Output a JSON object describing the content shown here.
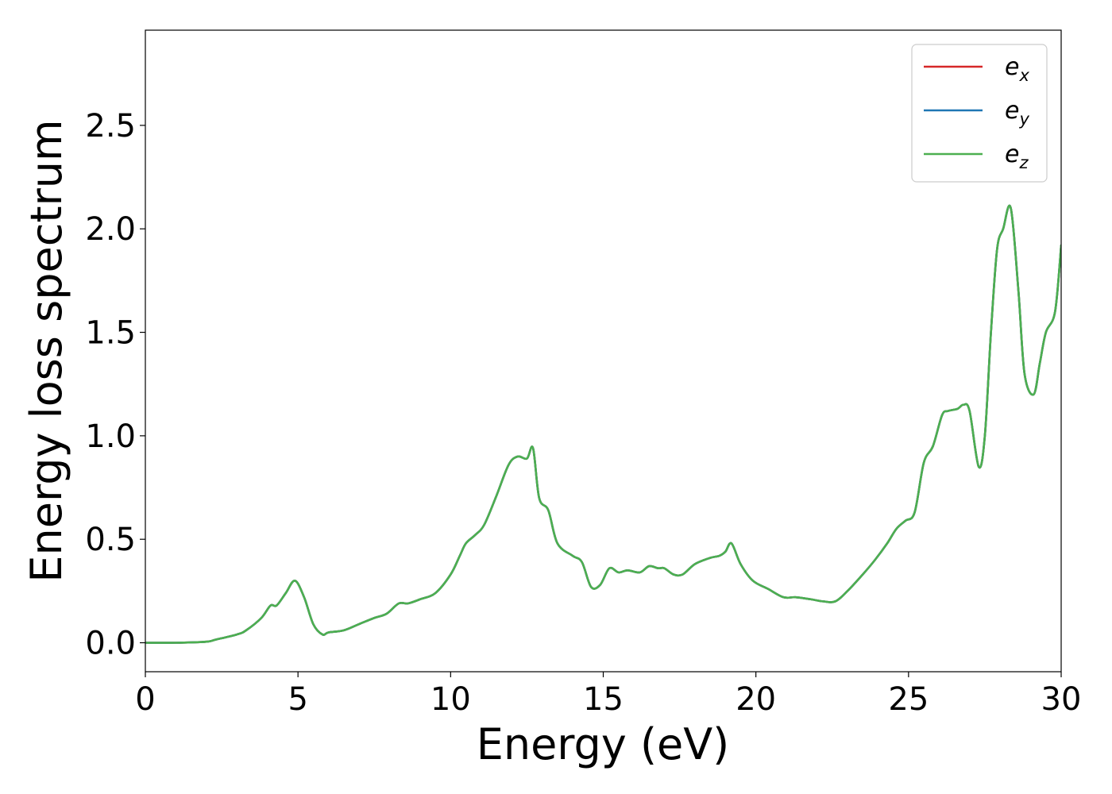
{
  "chart_data": {
    "type": "line",
    "xlabel": "Energy (eV)",
    "ylabel": "Energy loss spectrum",
    "xlim": [
      0,
      30
    ],
    "ylim": [
      -0.14,
      2.96
    ],
    "xticks": [
      0,
      5,
      10,
      15,
      20,
      25,
      30
    ],
    "xtick_labels": [
      "0",
      "5",
      "10",
      "15",
      "20",
      "25",
      "30"
    ],
    "yticks": [
      0.0,
      0.5,
      1.0,
      1.5,
      2.0,
      2.5
    ],
    "ytick_labels": [
      "0.0",
      "0.5",
      "1.0",
      "1.5",
      "2.0",
      "2.5"
    ],
    "grid": false,
    "legend_position": "top-right",
    "colors": {
      "e_x": "#d62728",
      "e_y": "#1f77b4",
      "e_z": "#4caf50"
    },
    "legend": [
      {
        "base": "e",
        "sub": "x",
        "color": "#d62728"
      },
      {
        "base": "e",
        "sub": "y",
        "color": "#1f77b4"
      },
      {
        "base": "e",
        "sub": "z",
        "color": "#4caf50"
      }
    ],
    "x": [
      0.0,
      1.0,
      2.0,
      2.3,
      3.0,
      3.3,
      3.8,
      4.1,
      4.3,
      4.6,
      4.9,
      5.2,
      5.5,
      5.8,
      6.0,
      6.5,
      7.0,
      7.5,
      7.9,
      8.3,
      8.6,
      9.0,
      9.5,
      10.0,
      10.3,
      10.5,
      10.8,
      11.1,
      11.5,
      11.9,
      12.2,
      12.5,
      12.7,
      12.9,
      13.2,
      13.5,
      14.0,
      14.3,
      14.6,
      14.9,
      15.2,
      15.5,
      15.8,
      16.2,
      16.5,
      16.8,
      17.0,
      17.3,
      17.6,
      18.0,
      18.5,
      18.8,
      19.0,
      19.2,
      19.5,
      19.9,
      20.4,
      20.9,
      21.3,
      21.8,
      22.2,
      22.6,
      23.0,
      23.5,
      23.9,
      24.3,
      24.6,
      24.9,
      25.2,
      25.5,
      25.8,
      26.1,
      26.3,
      26.6,
      26.8,
      27.0,
      27.3,
      27.5,
      27.7,
      27.9,
      28.1,
      28.35,
      28.6,
      28.8,
      29.1,
      29.3,
      29.5,
      29.8,
      30.0
    ],
    "series": [
      {
        "name": "e_x",
        "color": "#d62728",
        "values": [
          0.0,
          0.0,
          0.005,
          0.015,
          0.04,
          0.06,
          0.12,
          0.18,
          0.18,
          0.24,
          0.3,
          0.22,
          0.09,
          0.04,
          0.05,
          0.06,
          0.09,
          0.12,
          0.14,
          0.19,
          0.19,
          0.21,
          0.24,
          0.33,
          0.42,
          0.48,
          0.52,
          0.57,
          0.71,
          0.86,
          0.9,
          0.89,
          0.94,
          0.7,
          0.64,
          0.48,
          0.42,
          0.39,
          0.27,
          0.28,
          0.36,
          0.34,
          0.35,
          0.34,
          0.37,
          0.36,
          0.36,
          0.33,
          0.33,
          0.38,
          0.41,
          0.42,
          0.44,
          0.48,
          0.38,
          0.3,
          0.26,
          0.22,
          0.22,
          0.21,
          0.2,
          0.2,
          0.25,
          0.33,
          0.4,
          0.48,
          0.55,
          0.59,
          0.63,
          0.87,
          0.95,
          1.1,
          1.12,
          1.13,
          1.15,
          1.12,
          0.85,
          1.0,
          1.5,
          1.9,
          2.0,
          2.1,
          1.7,
          1.3,
          1.2,
          1.35,
          1.5,
          1.6,
          1.92
        ]
      },
      {
        "name": "e_y",
        "color": "#1f77b4",
        "values": [
          0.0,
          0.0,
          0.005,
          0.015,
          0.04,
          0.06,
          0.12,
          0.18,
          0.18,
          0.24,
          0.3,
          0.22,
          0.09,
          0.04,
          0.05,
          0.06,
          0.09,
          0.12,
          0.14,
          0.19,
          0.19,
          0.21,
          0.24,
          0.33,
          0.42,
          0.48,
          0.52,
          0.57,
          0.71,
          0.86,
          0.9,
          0.89,
          0.94,
          0.7,
          0.64,
          0.48,
          0.42,
          0.39,
          0.27,
          0.28,
          0.36,
          0.34,
          0.35,
          0.34,
          0.37,
          0.36,
          0.36,
          0.33,
          0.33,
          0.38,
          0.41,
          0.42,
          0.44,
          0.48,
          0.38,
          0.3,
          0.26,
          0.22,
          0.22,
          0.21,
          0.2,
          0.2,
          0.25,
          0.33,
          0.4,
          0.48,
          0.55,
          0.59,
          0.63,
          0.87,
          0.95,
          1.1,
          1.12,
          1.13,
          1.15,
          1.12,
          0.85,
          1.0,
          1.5,
          1.9,
          2.0,
          2.1,
          1.7,
          1.3,
          1.2,
          1.35,
          1.5,
          1.6,
          1.92
        ]
      },
      {
        "name": "e_z",
        "color": "#4caf50",
        "values": [
          0.0,
          0.0,
          0.005,
          0.015,
          0.04,
          0.06,
          0.12,
          0.18,
          0.18,
          0.24,
          0.3,
          0.22,
          0.09,
          0.04,
          0.05,
          0.06,
          0.09,
          0.12,
          0.14,
          0.19,
          0.19,
          0.21,
          0.24,
          0.33,
          0.42,
          0.48,
          0.52,
          0.57,
          0.71,
          0.86,
          0.9,
          0.89,
          0.94,
          0.7,
          0.64,
          0.48,
          0.42,
          0.39,
          0.27,
          0.28,
          0.36,
          0.34,
          0.35,
          0.34,
          0.37,
          0.36,
          0.36,
          0.33,
          0.33,
          0.38,
          0.41,
          0.42,
          0.44,
          0.48,
          0.38,
          0.3,
          0.26,
          0.22,
          0.22,
          0.21,
          0.2,
          0.2,
          0.25,
          0.33,
          0.4,
          0.48,
          0.55,
          0.59,
          0.63,
          0.87,
          0.95,
          1.1,
          1.12,
          1.13,
          1.15,
          1.12,
          0.85,
          1.0,
          1.5,
          1.9,
          2.0,
          2.1,
          1.7,
          1.3,
          1.2,
          1.35,
          1.5,
          1.6,
          1.92
        ]
      }
    ]
  }
}
